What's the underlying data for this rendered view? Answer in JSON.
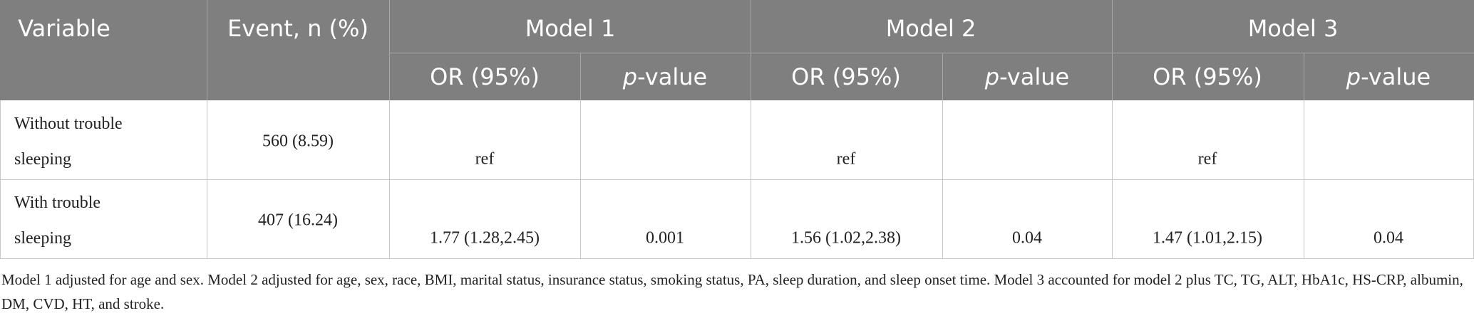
{
  "table": {
    "header": {
      "variable": "Variable",
      "event": "Event, n (%)",
      "models": [
        "Model 1",
        "Model 2",
        "Model 3"
      ],
      "or": "OR (95%)",
      "p_italic": "p",
      "p_rest": "-value"
    },
    "rows": [
      [
        "Without trouble sleeping",
        "560 (8.59)",
        "ref",
        "",
        "ref",
        "",
        "ref",
        ""
      ],
      [
        "With trouble sleeping",
        "407 (16.24)",
        "1.77 (1.28,2.45)",
        "0.001",
        "1.56 (1.02,2.38)",
        "0.04",
        "1.47 (1.01,2.15)",
        "0.04"
      ]
    ],
    "footnote": "Model 1 adjusted for age and sex. Model 2 adjusted for age, sex, race, BMI, marital status, insurance status, smoking status, PA, sleep duration, and sleep onset time. Model 3 accounted for model 2 plus TC, TG, ALT, HbA1c, HS-CRP, albumin, DM, CVD, HT, and stroke."
  }
}
